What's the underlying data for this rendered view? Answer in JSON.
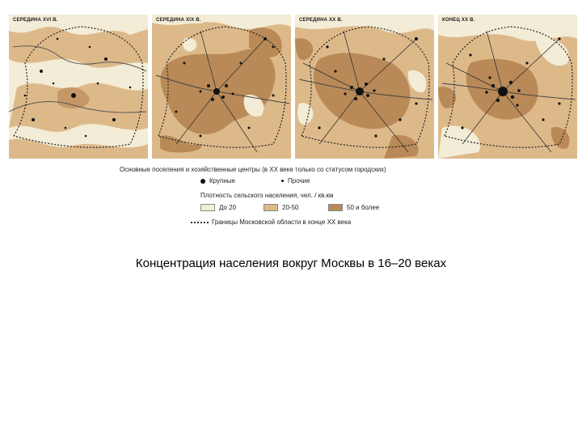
{
  "maps": [
    {
      "title": "СЕРЕДИНА XVI В."
    },
    {
      "title": "СЕРЕДИНА XIX В."
    },
    {
      "title": "СЕРЕДИНА XX В."
    },
    {
      "title": "КОНЕЦ XX В."
    }
  ],
  "legend": {
    "centers_title": "Основные поселения и хозяйственные центры (в XX веке только со статусом городских)",
    "large": "Крупные",
    "other": "Прочие",
    "density_title": "Плотность сельского населения, чел. / кв.км",
    "bin_low": "До 20",
    "bin_mid": "20-50",
    "bin_high": "50 и более",
    "border": "Границы Московской области в конце XX века"
  },
  "colors": {
    "low": "#f3ecd6",
    "mid": "#ddb98a",
    "high": "#b98a57"
  },
  "caption": "Концентрация населения вокруг Москвы в 16–20 веках"
}
